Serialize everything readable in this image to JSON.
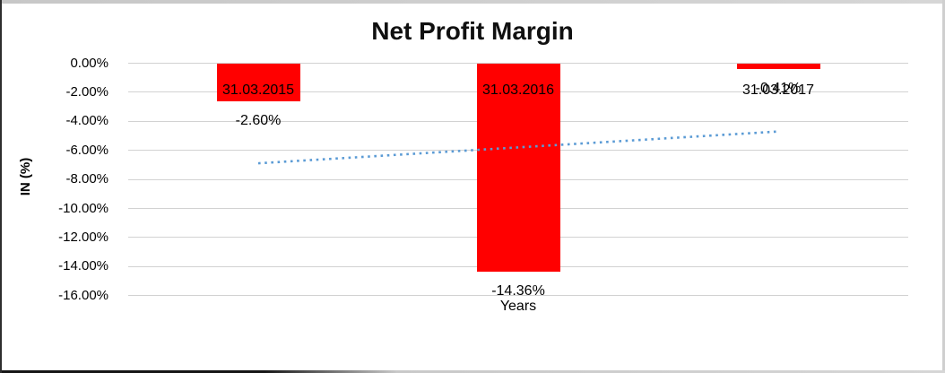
{
  "chart_data": {
    "type": "bar",
    "title": "Net Profit Margin",
    "xlabel": "Years",
    "ylabel": "IN (%)",
    "categories": [
      "31.03.2015",
      "31.03.2016",
      "31.03.2017"
    ],
    "series": [
      {
        "name": "Net Profit Margin",
        "values": [
          -2.6,
          -14.36,
          -0.41
        ]
      }
    ],
    "data_labels": [
      "-2.60%",
      "-14.36%",
      "-0.41%"
    ],
    "bar_color": "#ff0000",
    "ylim": [
      -16,
      0
    ],
    "yticks": [
      {
        "value": 0,
        "label": "0.00%"
      },
      {
        "value": -2,
        "label": "-2.00%"
      },
      {
        "value": -4,
        "label": "-4.00%"
      },
      {
        "value": -6,
        "label": "-6.00%"
      },
      {
        "value": -8,
        "label": "-8.00%"
      },
      {
        "value": -10,
        "label": "-10.00%"
      },
      {
        "value": -12,
        "label": "-12.00%"
      },
      {
        "value": -14,
        "label": "-14.00%"
      },
      {
        "value": -16,
        "label": "-16.00%"
      }
    ],
    "grid": true,
    "legend": "none",
    "trendline": {
      "type": "linear",
      "style": "dotted",
      "color": "#5b9bd5",
      "start_value": -6.89,
      "end_value": -4.7
    }
  }
}
